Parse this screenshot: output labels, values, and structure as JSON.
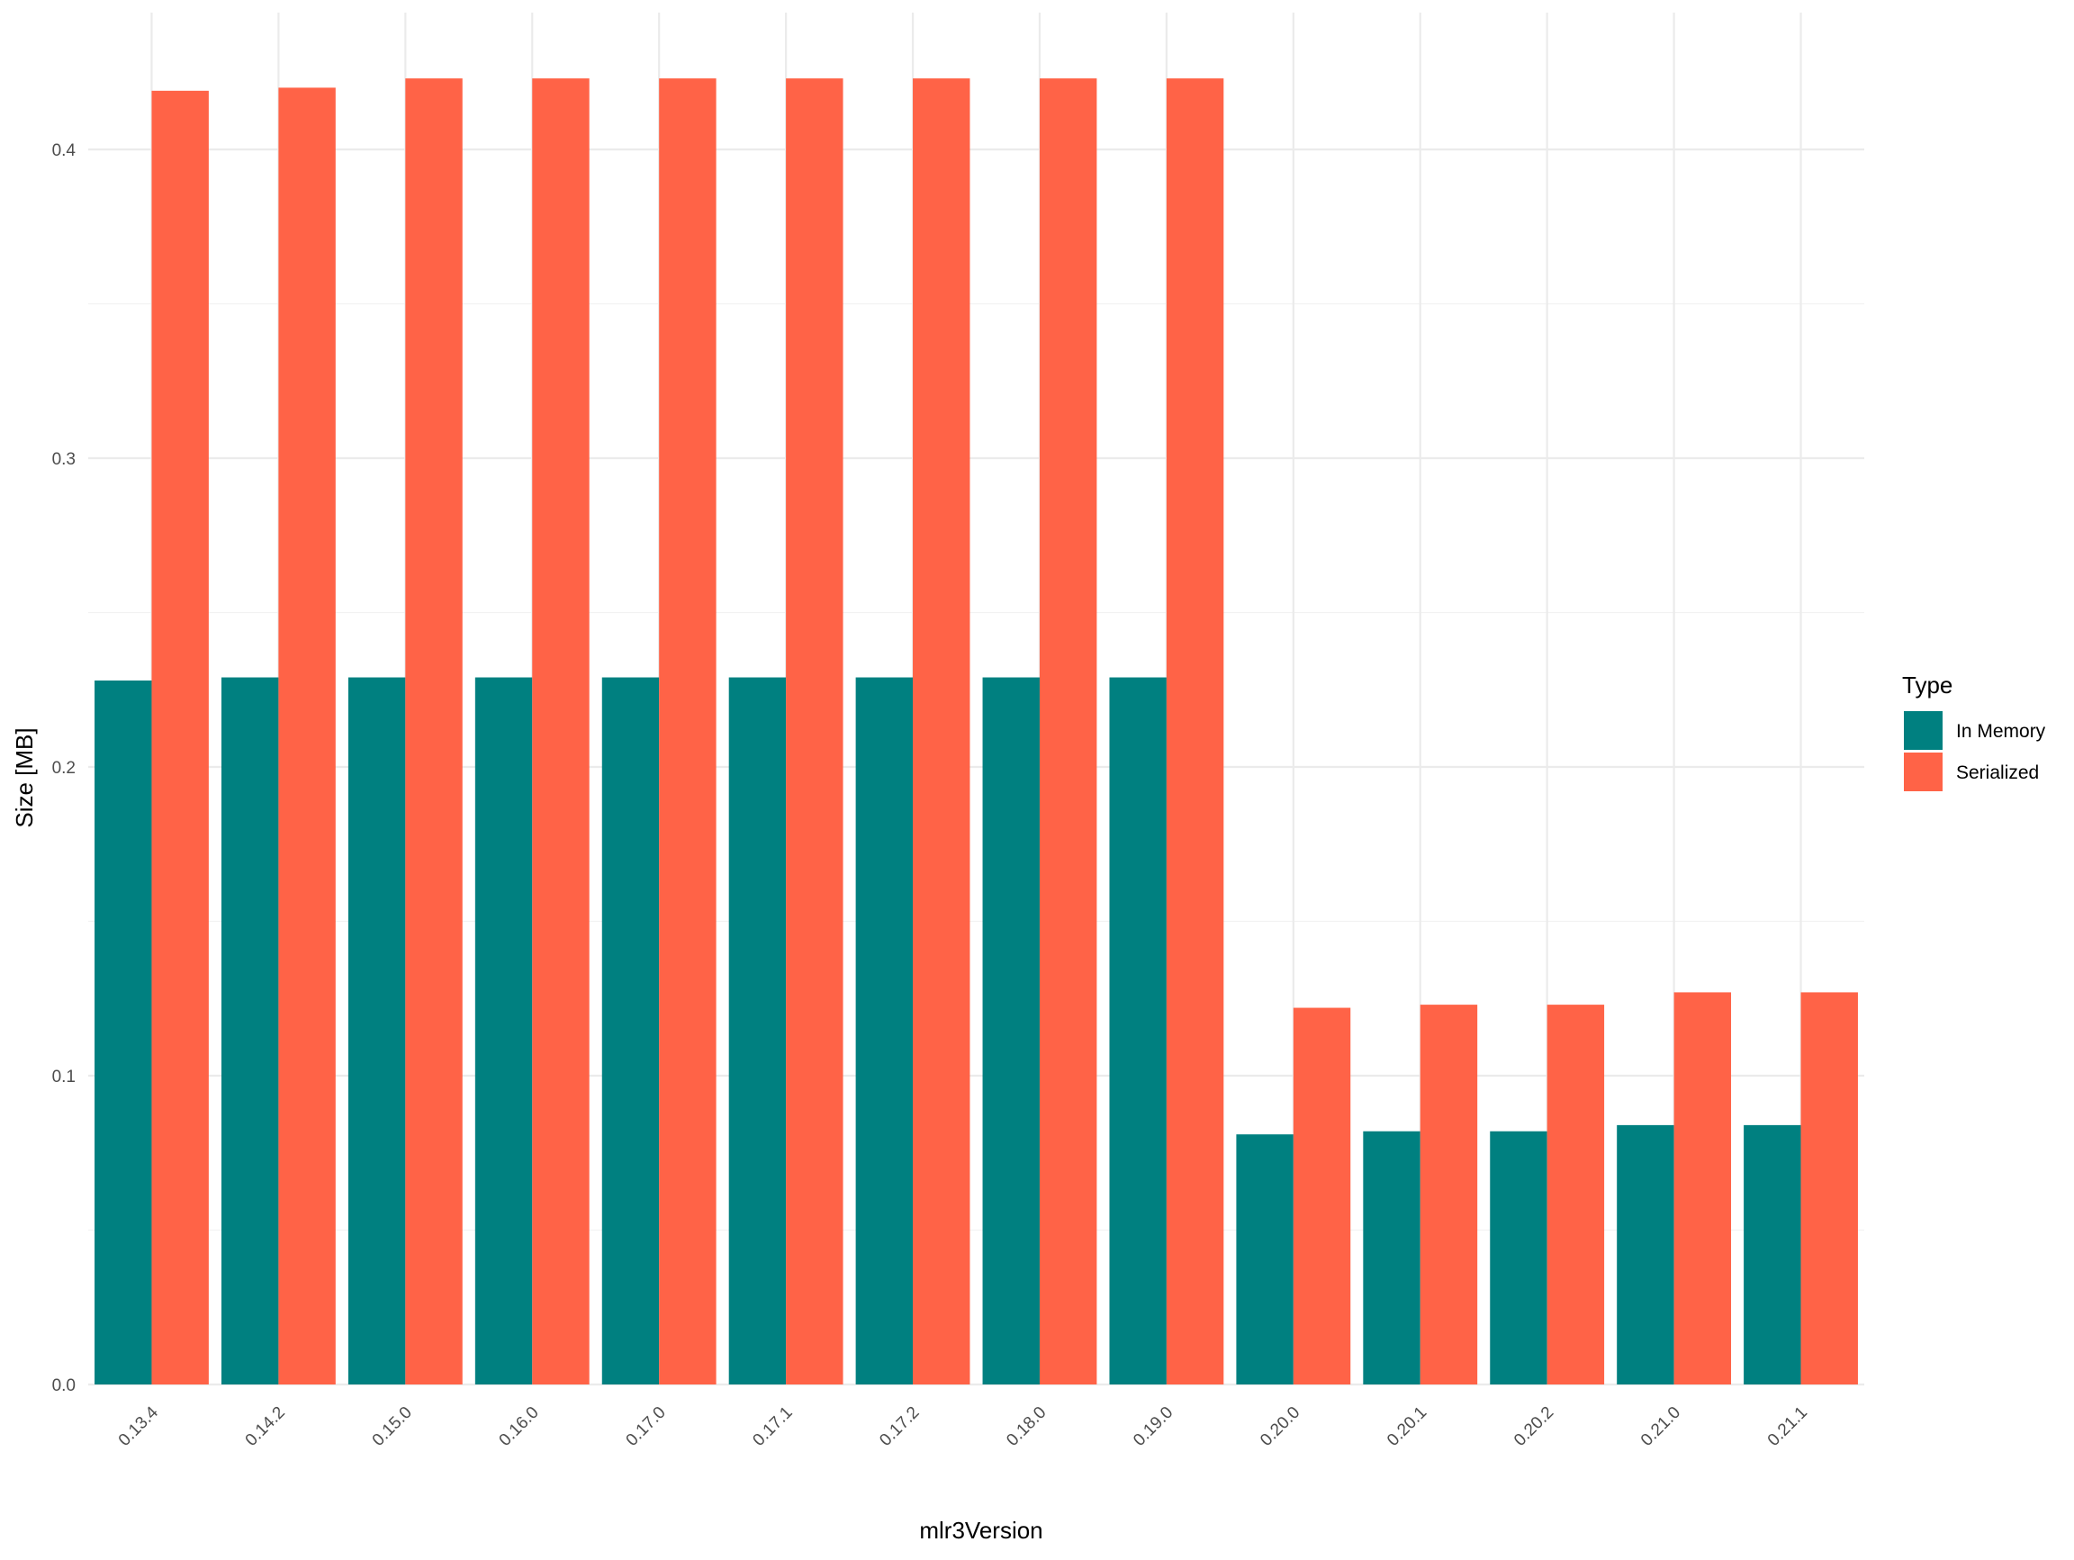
{
  "chart_data": {
    "type": "bar",
    "xlabel": "mlr3Version",
    "ylabel": "Size [MB]",
    "ylim": [
      0,
      0.43
    ],
    "yticks": [
      "0.0",
      "0.1",
      "0.2",
      "0.3",
      "0.4"
    ],
    "categories": [
      "0.13.4",
      "0.14.2",
      "0.15.0",
      "0.16.0",
      "0.17.0",
      "0.17.1",
      "0.17.2",
      "0.18.0",
      "0.19.0",
      "0.20.0",
      "0.20.1",
      "0.20.2",
      "0.21.0",
      "0.21.1"
    ],
    "legend": {
      "title": "Type",
      "position": "right"
    },
    "grid": true,
    "series": [
      {
        "name": "In Memory",
        "color": "#008080",
        "values": [
          0.228,
          0.229,
          0.229,
          0.229,
          0.229,
          0.229,
          0.229,
          0.229,
          0.229,
          0.081,
          0.082,
          0.082,
          0.084,
          0.084
        ]
      },
      {
        "name": "Serialized",
        "color": "#FF6347",
        "values": [
          0.419,
          0.42,
          0.423,
          0.423,
          0.423,
          0.423,
          0.423,
          0.423,
          0.423,
          0.122,
          0.123,
          0.123,
          0.127,
          0.127
        ]
      }
    ]
  }
}
